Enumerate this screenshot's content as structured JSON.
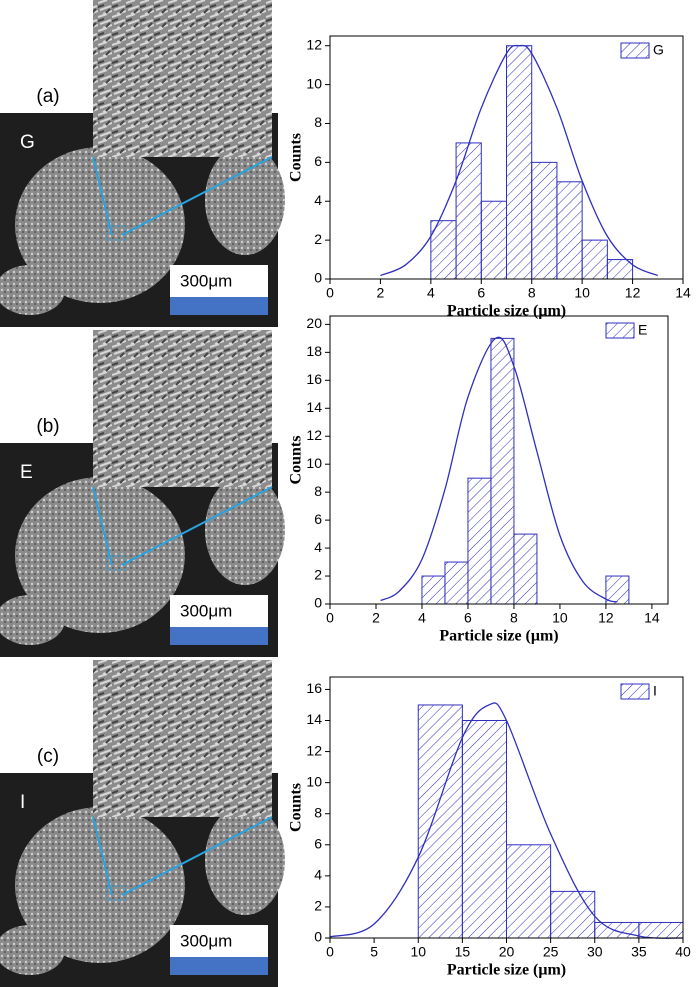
{
  "panels": [
    {
      "label": "(a)",
      "image_label": "G",
      "scale_bar": "300μm"
    },
    {
      "label": "(b)",
      "image_label": "E",
      "scale_bar": "300μm"
    },
    {
      "label": "(c)",
      "image_label": "I",
      "scale_bar": "300μm"
    }
  ],
  "chart_data": [
    {
      "type": "histogram",
      "xlabel": "Particle size (μm)",
      "ylabel": "Counts",
      "legend": "G",
      "color": "#2f2fbf",
      "bins": [
        4,
        5,
        6,
        7,
        8,
        9,
        10,
        11,
        12
      ],
      "counts": [
        3,
        7,
        4,
        12,
        6,
        5,
        2,
        1
      ],
      "fit": {
        "x": [
          2,
          3,
          4,
          5,
          6,
          7,
          7.5,
          8,
          9,
          10,
          11,
          12,
          13
        ],
        "values": [
          0.18,
          0.73,
          2.2,
          5.05,
          8.8,
          11.6,
          12,
          11.6,
          8.8,
          5.05,
          2.2,
          0.73,
          0.18
        ]
      },
      "xlim": [
        0,
        14
      ],
      "xticks": [
        0,
        2,
        4,
        6,
        8,
        10,
        12,
        14
      ],
      "ylim": [
        0,
        12.5
      ],
      "yticks": [
        0,
        2,
        4,
        6,
        8,
        10,
        12
      ]
    },
    {
      "type": "histogram",
      "xlabel": "Particle size (μm)",
      "ylabel": "Counts",
      "legend": "E",
      "color": "#2f2fbf",
      "bins": [
        4,
        5,
        6,
        7,
        8,
        9,
        10,
        11,
        12,
        13
      ],
      "counts": [
        2,
        3,
        9,
        19,
        5,
        0,
        0,
        0,
        2
      ],
      "fit": {
        "x": [
          2.2,
          3,
          4,
          5,
          6,
          7.2,
          8,
          9,
          10,
          11,
          12,
          12.5
        ],
        "values": [
          0.25,
          0.9,
          3.2,
          8.2,
          14.8,
          19,
          17,
          10.9,
          4.9,
          1.6,
          0.35,
          0.15
        ]
      },
      "xlim": [
        0,
        14.7
      ],
      "xticks": [
        0,
        2,
        4,
        6,
        8,
        10,
        12,
        14
      ],
      "ylim": [
        0,
        20.6
      ],
      "yticks": [
        0,
        2,
        4,
        6,
        8,
        10,
        12,
        14,
        16,
        18,
        20
      ]
    },
    {
      "type": "histogram",
      "xlabel": "Particle size (μm)",
      "ylabel": "Counts",
      "legend": "I",
      "color": "#2f2fbf",
      "bins": [
        10,
        15,
        20,
        25,
        30,
        35,
        40
      ],
      "counts": [
        15,
        14,
        6,
        3,
        1,
        1
      ],
      "fit": {
        "x": [
          0,
          5,
          10,
          15,
          18,
          20,
          25,
          30,
          35,
          40
        ],
        "values": [
          0.07,
          0.9,
          5.2,
          12.9,
          15,
          14,
          6.7,
          1.4,
          0.13,
          0
        ]
      },
      "xlim": [
        0,
        40
      ],
      "xticks": [
        0,
        5,
        10,
        15,
        20,
        25,
        30,
        35,
        40
      ],
      "ylim": [
        0,
        16.8
      ],
      "yticks": [
        0,
        2,
        4,
        6,
        8,
        10,
        12,
        14,
        16
      ]
    }
  ]
}
